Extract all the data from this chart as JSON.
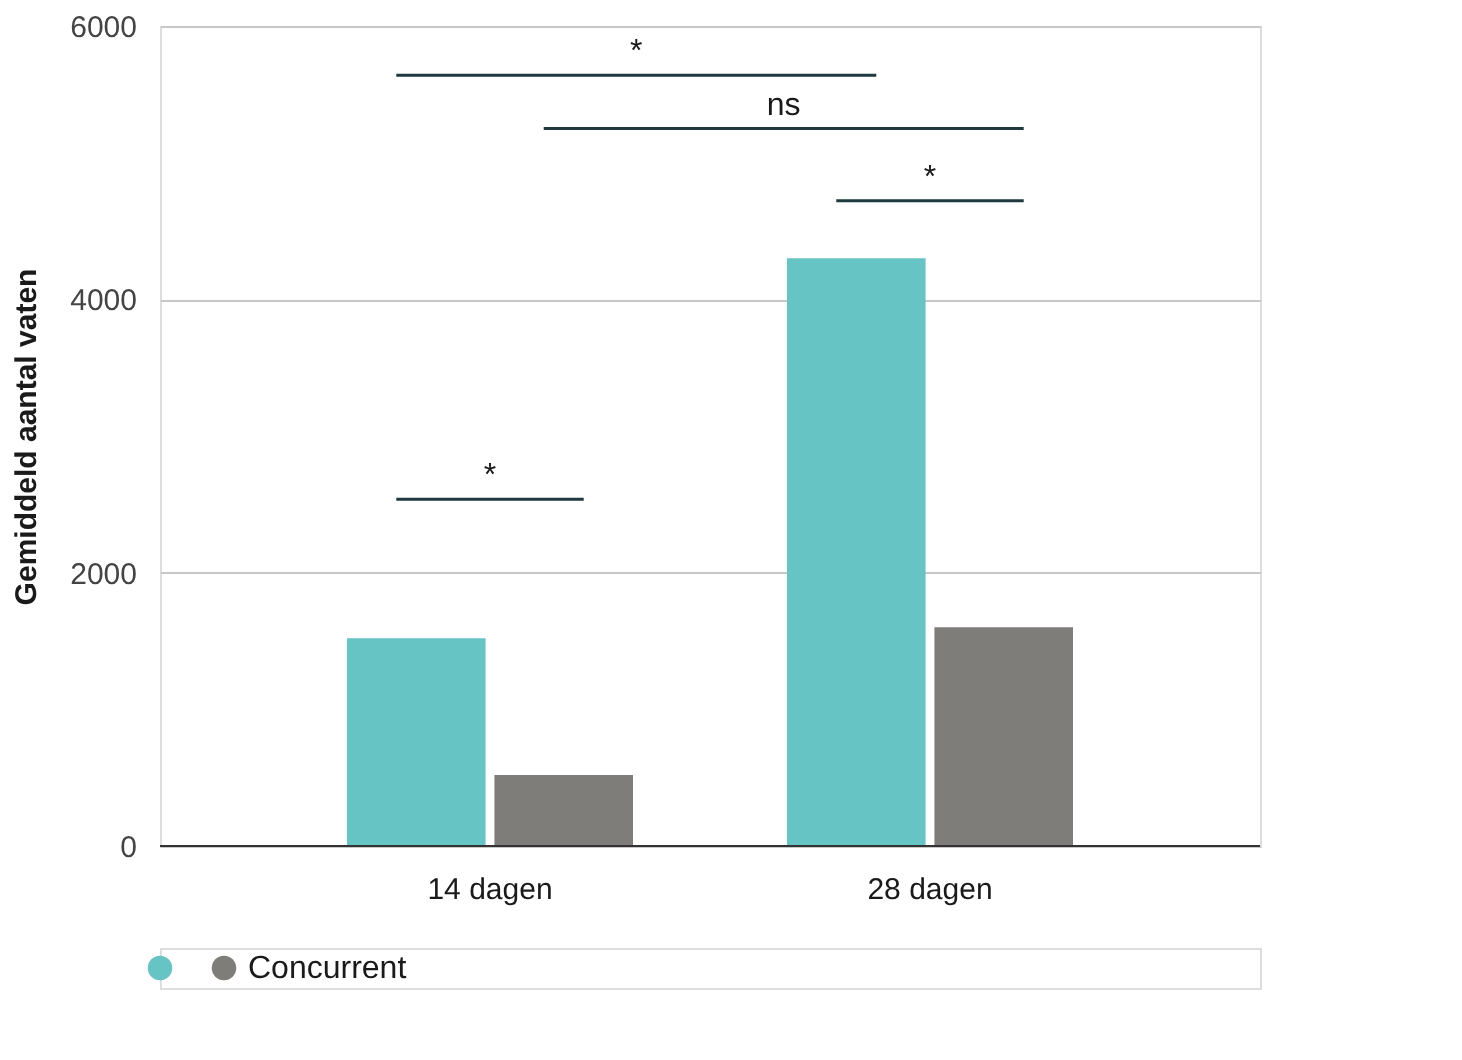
{
  "chart_data": {
    "type": "bar",
    "ylabel": "Gemiddeld aantal vaten",
    "categories": [
      "14 dagen",
      "28 dagen"
    ],
    "series": [
      {
        "color": "#67c4c4",
        "values": [
          1520,
          4300
        ]
      },
      {
        "name": "Concurrent",
        "color": "#7f7d7a",
        "values": [
          520,
          1600
        ]
      }
    ],
    "ylim": [
      0,
      6000
    ],
    "yticks": [
      0,
      2000,
      4000,
      6000
    ],
    "grid": "y",
    "legend": "bottom left",
    "annotations": [
      "*",
      "*",
      "ns",
      "*"
    ]
  }
}
